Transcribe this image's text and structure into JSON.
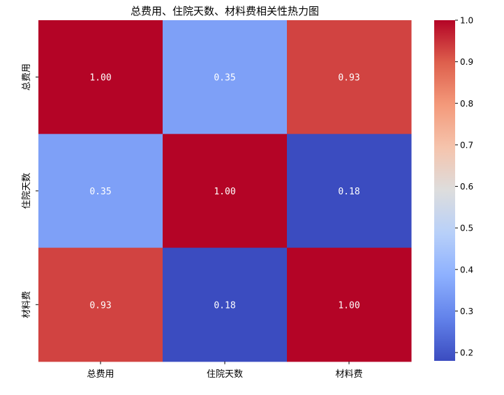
{
  "chart_data": {
    "type": "heatmap",
    "title": "总费用、住院天数、材料费相关性热力图",
    "x_labels": [
      "总费用",
      "住院天数",
      "材料费"
    ],
    "y_labels": [
      "总费用",
      "住院天数",
      "材料费"
    ],
    "values": [
      [
        1.0,
        0.35,
        0.93
      ],
      [
        0.35,
        1.0,
        0.18
      ],
      [
        0.93,
        0.18,
        1.0
      ]
    ],
    "cell_labels": [
      [
        "1.00",
        "0.35",
        "0.93"
      ],
      [
        "0.35",
        "1.00",
        "0.18"
      ],
      [
        "0.93",
        "0.18",
        "1.00"
      ]
    ],
    "colormap": "coolwarm",
    "colorbar": {
      "range": [
        0.18,
        1.0
      ],
      "ticks": [
        0.2,
        0.3,
        0.4,
        0.5,
        0.6,
        0.7,
        0.8,
        0.9,
        1.0
      ],
      "tick_labels": [
        "0.2",
        "0.3",
        "0.4",
        "0.5",
        "0.6",
        "0.7",
        "0.8",
        "0.9",
        "1.0"
      ]
    },
    "grid": false
  }
}
